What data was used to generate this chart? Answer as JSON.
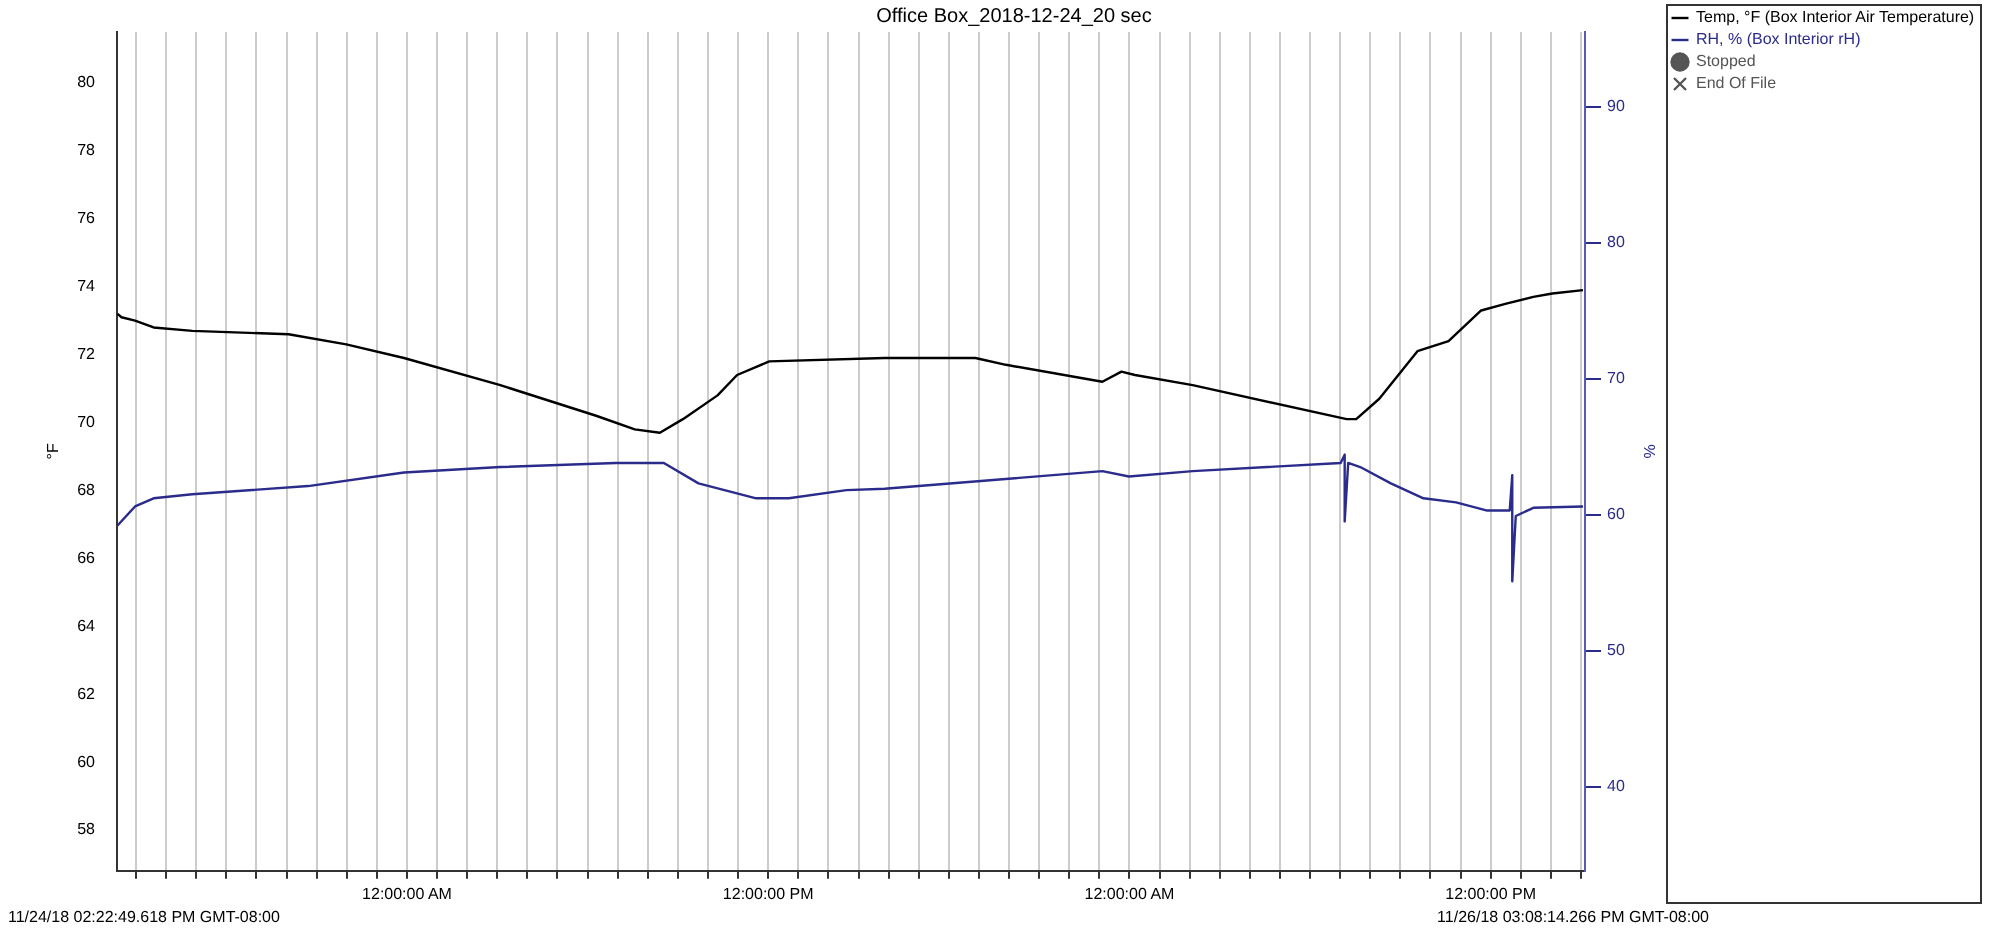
{
  "chart_data": {
    "type": "line",
    "title": "Office Box_2018-12-24_20 sec",
    "ylabel": "°F",
    "y2label": "%",
    "legend": "top right",
    "grid": "x",
    "annotations": [
      "11/24/18 02:22:49.618 PM GMT-08:00",
      "11/26/18 03:08:14.266 PM GMT-08:00"
    ],
    "xlim": [
      "2018-11-24T14:22",
      "2018-11-26T15:08"
    ],
    "xticks": [
      {
        "value": "2018-11-24T15:00",
        "label": null
      },
      {
        "value": "2018-11-24T16:00",
        "label": null
      },
      {
        "value": "2018-11-24T17:00",
        "label": null
      },
      {
        "value": "2018-11-24T18:00",
        "label": null
      },
      {
        "value": "2018-11-24T19:00",
        "label": null
      },
      {
        "value": "2018-11-24T20:00",
        "label": null
      },
      {
        "value": "2018-11-24T21:00",
        "label": null
      },
      {
        "value": "2018-11-24T22:00",
        "label": null
      },
      {
        "value": "2018-11-24T23:00",
        "label": null
      },
      {
        "value": "2018-11-25T00:00",
        "label": "12:00:00 AM"
      },
      {
        "value": "2018-11-25T01:00",
        "label": null
      },
      {
        "value": "2018-11-25T02:00",
        "label": null
      },
      {
        "value": "2018-11-25T03:00",
        "label": null
      },
      {
        "value": "2018-11-25T04:00",
        "label": null
      },
      {
        "value": "2018-11-25T05:00",
        "label": null
      },
      {
        "value": "2018-11-25T06:00",
        "label": null
      },
      {
        "value": "2018-11-25T07:00",
        "label": null
      },
      {
        "value": "2018-11-25T08:00",
        "label": null
      },
      {
        "value": "2018-11-25T09:00",
        "label": null
      },
      {
        "value": "2018-11-25T10:00",
        "label": null
      },
      {
        "value": "2018-11-25T11:00",
        "label": null
      },
      {
        "value": "2018-11-25T12:00",
        "label": "12:00:00 PM"
      },
      {
        "value": "2018-11-25T13:00",
        "label": null
      },
      {
        "value": "2018-11-25T14:00",
        "label": null
      },
      {
        "value": "2018-11-25T15:00",
        "label": null
      },
      {
        "value": "2018-11-25T16:00",
        "label": null
      },
      {
        "value": "2018-11-25T17:00",
        "label": null
      },
      {
        "value": "2018-11-25T18:00",
        "label": null
      },
      {
        "value": "2018-11-25T19:00",
        "label": null
      },
      {
        "value": "2018-11-25T20:00",
        "label": null
      },
      {
        "value": "2018-11-25T21:00",
        "label": null
      },
      {
        "value": "2018-11-25T22:00",
        "label": null
      },
      {
        "value": "2018-11-25T23:00",
        "label": null
      },
      {
        "value": "2018-11-26T00:00",
        "label": "12:00:00 AM"
      },
      {
        "value": "2018-11-26T01:00",
        "label": null
      },
      {
        "value": "2018-11-26T02:00",
        "label": null
      },
      {
        "value": "2018-11-26T03:00",
        "label": null
      },
      {
        "value": "2018-11-26T04:00",
        "label": null
      },
      {
        "value": "2018-11-26T05:00",
        "label": null
      },
      {
        "value": "2018-11-26T06:00",
        "label": null
      },
      {
        "value": "2018-11-26T07:00",
        "label": null
      },
      {
        "value": "2018-11-26T08:00",
        "label": null
      },
      {
        "value": "2018-11-26T09:00",
        "label": null
      },
      {
        "value": "2018-11-26T10:00",
        "label": null
      },
      {
        "value": "2018-11-26T11:00",
        "label": null
      },
      {
        "value": "2018-11-26T12:00",
        "label": "12:00:00 PM"
      },
      {
        "value": "2018-11-26T13:00",
        "label": null
      },
      {
        "value": "2018-11-26T14:00",
        "label": null
      },
      {
        "value": "2018-11-26T15:00",
        "label": null
      }
    ],
    "ylim": [
      56.8,
      81.5
    ],
    "yticks": [
      58,
      60,
      62,
      64,
      66,
      68,
      70,
      72,
      74,
      76,
      78,
      80
    ],
    "y2lim": [
      33.8,
      95.5
    ],
    "y2ticks": [
      40,
      50,
      60,
      70,
      80,
      90
    ],
    "series": [
      {
        "name": "Temp, °F (Box Interior Air Temperature)",
        "color": "#000000",
        "marker": "none",
        "x": [
          "2018-11-24T14:23",
          "2018-11-24T14:31",
          "2018-11-24T14:58",
          "2018-11-24T15:35",
          "2018-11-24T16:52",
          "2018-11-24T20:04",
          "2018-11-24T21:59",
          "2018-11-24T23:54",
          "2018-11-25T03:06",
          "2018-11-25T06:17",
          "2018-11-25T07:34",
          "2018-11-25T08:24",
          "2018-11-25T09:10",
          "2018-11-25T10:19",
          "2018-11-25T10:58",
          "2018-11-25T12:02",
          "2018-11-25T15:52",
          "2018-11-25T18:53",
          "2018-11-25T19:54",
          "2018-11-25T23:06",
          "2018-11-25T23:44",
          "2018-11-26T00:11",
          "2018-11-26T02:06",
          "2018-11-26T07:13",
          "2018-11-26T07:32",
          "2018-11-26T08:18",
          "2018-11-26T09:34",
          "2018-11-26T10:36",
          "2018-11-26T11:41",
          "2018-11-26T12:31",
          "2018-11-26T13:25",
          "2018-11-26T14:03",
          "2018-11-26T15:04"
        ],
        "values": [
          73.2,
          73.1,
          73.0,
          72.8,
          72.7,
          72.6,
          72.3,
          71.9,
          71.1,
          70.2,
          69.8,
          69.7,
          70.1,
          70.8,
          71.4,
          71.8,
          71.9,
          71.9,
          71.7,
          71.2,
          71.5,
          71.4,
          71.1,
          70.1,
          70.1,
          70.7,
          72.1,
          72.4,
          73.3,
          73.5,
          73.7,
          73.8,
          73.9
        ]
      },
      {
        "name": "RH, % (Box Interior rH)",
        "color": "#2b2b8c",
        "marker": "none",
        "axis": "y2",
        "x": [
          "2018-11-24T14:23",
          "2018-11-24T14:58",
          "2018-11-24T15:35",
          "2018-11-24T16:52",
          "2018-11-24T20:43",
          "2018-11-24T23:54",
          "2018-11-25T03:06",
          "2018-11-25T06:56",
          "2018-11-25T08:32",
          "2018-11-25T09:41",
          "2018-11-25T11:36",
          "2018-11-25T12:41",
          "2018-11-25T14:36",
          "2018-11-25T15:52",
          "2018-11-25T23:06",
          "2018-11-25T23:59",
          "2018-11-26T02:06",
          "2018-11-26T07:01",
          "2018-11-26T07:09",
          "2018-11-26T07:09",
          "2018-11-26T07:16",
          "2018-11-26T07:40",
          "2018-11-26T08:41",
          "2018-11-26T09:46",
          "2018-11-26T10:51",
          "2018-11-26T11:53",
          "2018-11-26T12:38",
          "2018-11-26T12:43",
          "2018-11-26T12:43",
          "2018-11-26T12:50",
          "2018-11-26T13:25",
          "2018-11-26T15:04"
        ],
        "values": [
          59.2,
          60.6,
          61.2,
          61.5,
          62.1,
          63.1,
          63.5,
          63.8,
          63.8,
          62.3,
          61.2,
          61.2,
          61.8,
          61.9,
          63.2,
          62.8,
          63.2,
          63.8,
          64.4,
          59.5,
          63.8,
          63.5,
          62.3,
          61.2,
          60.9,
          60.3,
          60.3,
          62.9,
          55.1,
          59.9,
          60.5,
          60.6
        ]
      },
      {
        "name": "Stopped",
        "color": "#555555",
        "marker": "circle",
        "type": "scatter"
      },
      {
        "name": "End Of File",
        "color": "#555555",
        "marker": "cross",
        "type": "scatter"
      }
    ]
  }
}
